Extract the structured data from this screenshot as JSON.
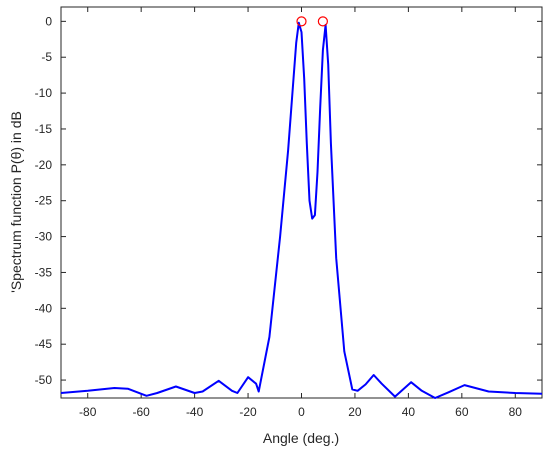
{
  "chart_data": {
    "type": "line",
    "title": "",
    "xlabel": "Angle (deg.)",
    "ylabel": "'Spectrum function P(θ) in  dB",
    "xlim": [
      -90,
      90
    ],
    "ylim": [
      -52.5,
      2
    ],
    "xticks": [
      -80,
      -60,
      -40,
      -20,
      0,
      20,
      40,
      60,
      80
    ],
    "yticks": [
      0,
      -5,
      -10,
      -15,
      -20,
      -25,
      -30,
      -35,
      -40,
      -45,
      -50
    ],
    "grid": false,
    "legend": "none",
    "series": [
      {
        "color": "#0000ff",
        "x": [
          -90,
          -80,
          -70,
          -65,
          -58,
          -54,
          -47,
          -40,
          -37,
          -31,
          -26,
          -24,
          -20,
          -17,
          -16,
          -12,
          -8,
          -5,
          -3,
          -2,
          -1,
          0,
          1,
          2,
          3,
          4,
          5,
          6,
          7,
          8,
          9,
          10,
          11,
          13,
          16,
          19,
          21,
          24,
          27,
          30,
          35,
          41,
          45,
          50,
          55,
          61,
          70,
          80,
          90
        ],
        "y": [
          -51.8,
          -51.5,
          -51.1,
          -51.2,
          -52.2,
          -51.8,
          -50.9,
          -51.8,
          -51.6,
          -50.1,
          -51.5,
          -51.8,
          -49.6,
          -50.5,
          -51.6,
          -44,
          -30,
          -18,
          -8,
          -3,
          -0.2,
          -1.5,
          -8,
          -17,
          -25,
          -27.5,
          -27,
          -21,
          -12,
          -4,
          -0.5,
          -6,
          -17,
          -33,
          -46,
          -51.3,
          -51.5,
          -50.6,
          -49.3,
          -50.5,
          -52.3,
          -50.3,
          -51.5,
          -52.5,
          -51.7,
          -50.7,
          -51.6,
          -51.8,
          -51.9
        ]
      }
    ],
    "markers": [
      {
        "x": 0,
        "y": 0,
        "color": "#ff0000"
      },
      {
        "x": 8,
        "y": 0,
        "color": "#ff0000"
      }
    ]
  }
}
